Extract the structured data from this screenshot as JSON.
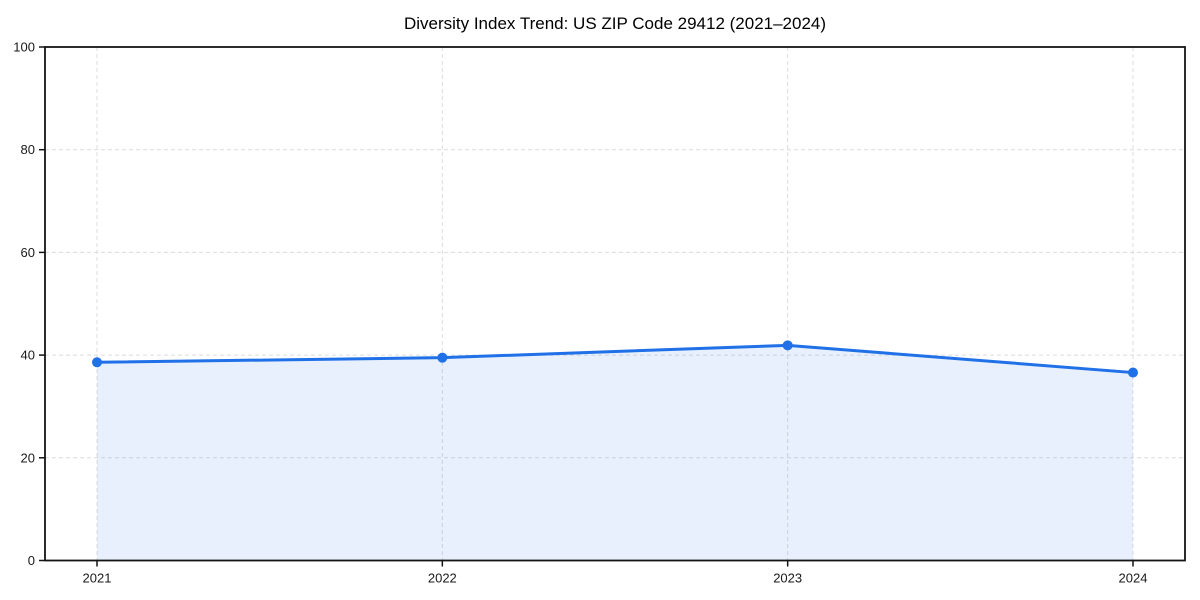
{
  "chart_data": {
    "type": "line",
    "title": "Diversity Index Trend: US ZIP Code 29412 (2021–2024)",
    "categories": [
      "2021",
      "2022",
      "2023",
      "2024"
    ],
    "series": [
      {
        "name": "Diversity Index",
        "values": [
          38.6,
          39.5,
          41.9,
          36.6
        ]
      }
    ],
    "xlabel": "",
    "ylabel": "",
    "ylim": [
      0,
      100
    ],
    "y_ticks": [
      0,
      20,
      40,
      60,
      80,
      100
    ],
    "grid": true,
    "grid_style": "dashed",
    "legend": false,
    "markers": true,
    "area_fill": true,
    "colors": {
      "line": "#2070e8",
      "fill_opacity": 0.1,
      "grid": "#dcdcdc",
      "spine": "#141414",
      "background": "#ffffff"
    }
  }
}
